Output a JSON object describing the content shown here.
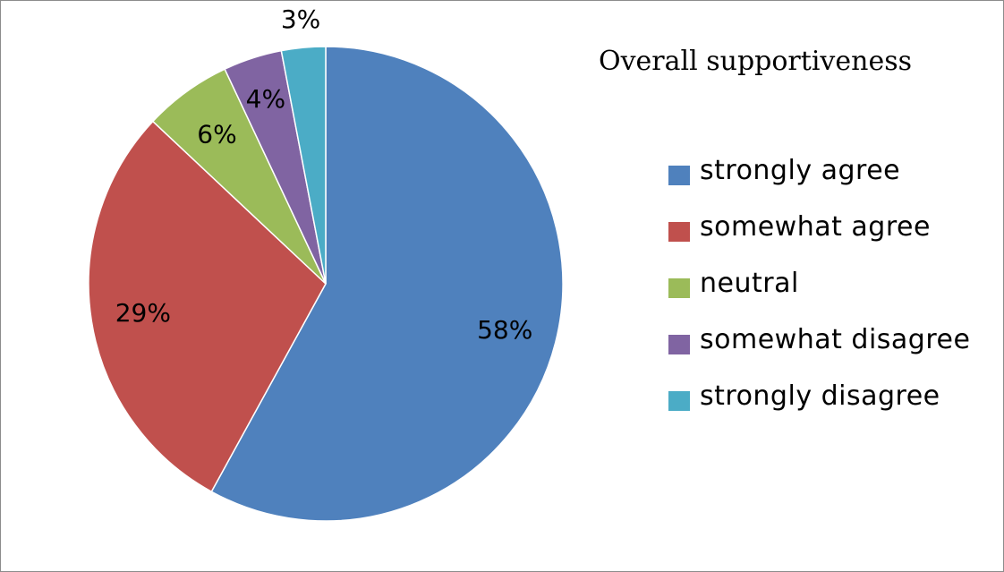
{
  "chart_data": {
    "type": "pie",
    "title": "Overall supportiveness",
    "categories": [
      "strongly agree",
      "somewhat agree",
      "neutral",
      "somewhat disagree",
      "strongly disagree"
    ],
    "values": [
      58,
      29,
      6,
      4,
      3
    ],
    "labels": [
      "58%",
      "29%",
      "6%",
      "4%",
      "3%"
    ],
    "colors": [
      "#4f81bd",
      "#c0504d",
      "#9bbb59",
      "#8064a2",
      "#4bacc6"
    ],
    "legend_position": "right"
  }
}
